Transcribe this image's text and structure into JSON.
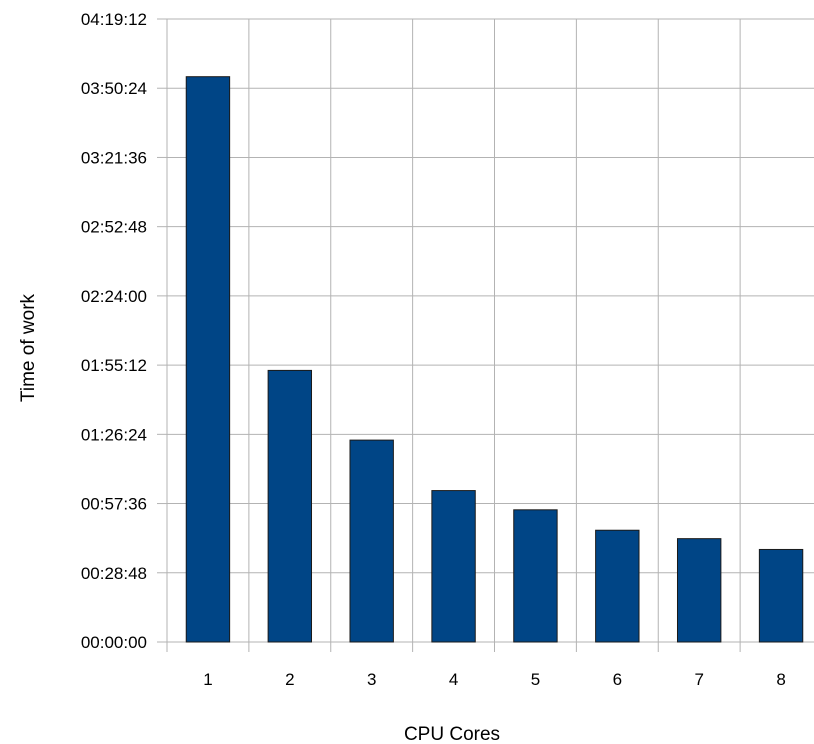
{
  "chart_data": {
    "type": "bar",
    "title": "",
    "xlabel": "CPU Cores",
    "ylabel": "Time of work",
    "categories": [
      "1",
      "2",
      "3",
      "4",
      "5",
      "6",
      "7",
      "8"
    ],
    "values": [
      "03:55:12",
      "01:53:00",
      "01:24:00",
      "01:03:00",
      "00:55:00",
      "00:46:30",
      "00:43:00",
      "00:38:30"
    ],
    "value_unit": "hh:mm:ss",
    "ylim": [
      "00:00:00",
      "04:19:12"
    ],
    "y_ticks": [
      "00:00:00",
      "00:28:48",
      "00:57:36",
      "01:26:24",
      "01:55:12",
      "02:24:00",
      "02:52:48",
      "03:21:36",
      "03:50:24",
      "04:19:12"
    ],
    "grid": true,
    "legend": "none",
    "colors": {
      "bar_fill": "#004586",
      "bar_stroke": "#1a1a1a",
      "grid": "#b3b3b3"
    }
  }
}
